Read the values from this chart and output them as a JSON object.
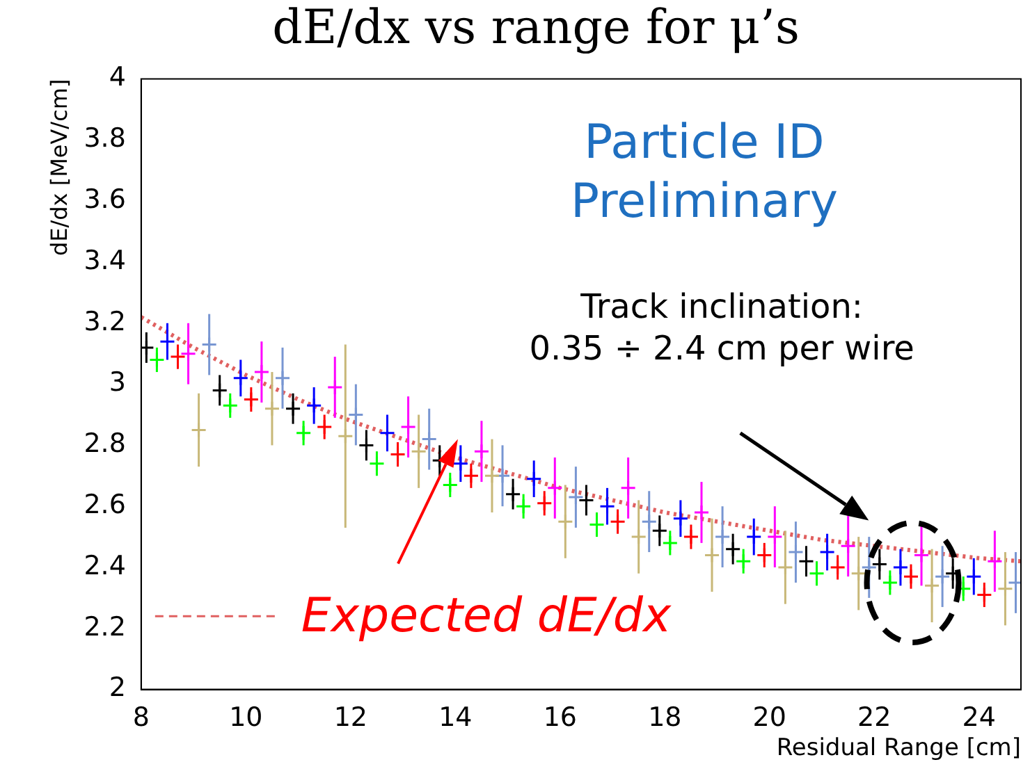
{
  "chart_data": {
    "type": "scatter",
    "title": "dE/dx vs range for μ’s",
    "xlabel": "Residual Range [cm]",
    "ylabel": "dE/dx [MeV/cm]",
    "xlim": [
      8,
      24.8
    ],
    "xticks": [
      8,
      10,
      12,
      14,
      16,
      18,
      20,
      22,
      24
    ],
    "ylim": [
      2,
      4
    ],
    "yticks": [
      2,
      2.2,
      2.4,
      2.6,
      2.8,
      3,
      3.2,
      3.4,
      3.6,
      3.8,
      4
    ],
    "grid": false,
    "marker": "cross",
    "legend": "bottom left",
    "annotations": [
      "Particle ID\nPreliminary",
      "Track inclination:\n0.35 ÷ 2.4 cm per wire"
    ],
    "series": [
      {
        "color": "#000000",
        "x": [
          8.1,
          9.5,
          10.9,
          12.3,
          13.7,
          15.1,
          16.5,
          17.9,
          19.3,
          20.7,
          22.1,
          23.5
        ],
        "values": [
          3.12,
          2.98,
          2.92,
          2.8,
          2.75,
          2.64,
          2.62,
          2.52,
          2.46,
          2.42,
          2.41,
          2.38
        ],
        "errors": [
          0.05,
          0.05,
          0.05,
          0.05,
          0.05,
          0.05,
          0.05,
          0.05,
          0.05,
          0.05,
          0.05,
          0.05
        ]
      },
      {
        "color": "#00ff00",
        "x": [
          8.3,
          9.7,
          11.1,
          12.5,
          13.9,
          15.3,
          16.7,
          18.1,
          19.5,
          20.9,
          22.3,
          23.7
        ],
        "values": [
          3.08,
          2.93,
          2.84,
          2.74,
          2.67,
          2.6,
          2.54,
          2.48,
          2.42,
          2.38,
          2.35,
          2.33
        ],
        "errors": [
          0.04,
          0.04,
          0.04,
          0.04,
          0.04,
          0.04,
          0.04,
          0.04,
          0.04,
          0.04,
          0.04,
          0.04
        ]
      },
      {
        "color": "#0000ff",
        "x": [
          8.5,
          9.9,
          11.3,
          12.7,
          14.1,
          15.5,
          16.9,
          18.3,
          19.7,
          21.1,
          22.5,
          23.9
        ],
        "values": [
          3.14,
          3.02,
          2.93,
          2.84,
          2.74,
          2.69,
          2.6,
          2.56,
          2.5,
          2.45,
          2.4,
          2.37
        ],
        "errors": [
          0.06,
          0.06,
          0.06,
          0.06,
          0.06,
          0.06,
          0.06,
          0.06,
          0.06,
          0.06,
          0.06,
          0.06
        ]
      },
      {
        "color": "#ff0000",
        "x": [
          8.7,
          10.1,
          11.5,
          12.9,
          14.3,
          15.7,
          17.1,
          18.5,
          19.9,
          21.3,
          22.7,
          24.1
        ],
        "values": [
          3.09,
          2.95,
          2.86,
          2.77,
          2.7,
          2.61,
          2.55,
          2.5,
          2.44,
          2.4,
          2.37,
          2.31
        ],
        "errors": [
          0.04,
          0.04,
          0.04,
          0.04,
          0.04,
          0.04,
          0.04,
          0.04,
          0.04,
          0.04,
          0.04,
          0.04
        ]
      },
      {
        "color": "#ff00ff",
        "x": [
          8.9,
          10.3,
          11.7,
          13.1,
          14.5,
          15.9,
          17.3,
          18.7,
          20.1,
          21.5,
          22.9,
          24.3
        ],
        "values": [
          3.1,
          3.04,
          2.99,
          2.86,
          2.78,
          2.66,
          2.66,
          2.58,
          2.5,
          2.47,
          2.44,
          2.42
        ],
        "errors": [
          0.1,
          0.1,
          0.1,
          0.1,
          0.1,
          0.1,
          0.1,
          0.1,
          0.1,
          0.1,
          0.1,
          0.1
        ]
      },
      {
        "color": "#c8b878",
        "x": [
          9.1,
          10.5,
          11.9,
          13.3,
          14.7,
          16.1,
          17.5,
          18.9,
          20.3,
          21.7,
          23.1,
          24.5
        ],
        "values": [
          2.85,
          2.92,
          2.83,
          2.78,
          2.7,
          2.55,
          2.5,
          2.44,
          2.4,
          2.38,
          2.34,
          2.33
        ],
        "errors": [
          0.12,
          0.12,
          0.3,
          0.12,
          0.12,
          0.12,
          0.12,
          0.12,
          0.12,
          0.12,
          0.12,
          0.12
        ]
      },
      {
        "color": "#7896d2",
        "x": [
          9.3,
          10.7,
          12.1,
          13.5,
          14.9,
          16.3,
          17.7,
          19.1,
          20.5,
          21.9,
          23.3,
          24.7
        ],
        "values": [
          3.13,
          3.02,
          2.9,
          2.82,
          2.7,
          2.63,
          2.55,
          2.5,
          2.45,
          2.4,
          2.37,
          2.35
        ],
        "errors": [
          0.1,
          0.1,
          0.1,
          0.1,
          0.1,
          0.1,
          0.1,
          0.1,
          0.1,
          0.1,
          0.1,
          0.1
        ]
      },
      {
        "type": "line",
        "name": "Expected dE/dx",
        "marker": "none",
        "color": "#e06060",
        "line_style": "dotted",
        "x": [
          8,
          9,
          10,
          11,
          12,
          13,
          14,
          15,
          16,
          17,
          18,
          19,
          20,
          21,
          22,
          23,
          24,
          24.8
        ],
        "values": [
          3.22,
          3.12,
          3.03,
          2.95,
          2.88,
          2.82,
          2.76,
          2.71,
          2.66,
          2.62,
          2.58,
          2.55,
          2.52,
          2.49,
          2.47,
          2.45,
          2.43,
          2.42
        ]
      }
    ]
  }
}
